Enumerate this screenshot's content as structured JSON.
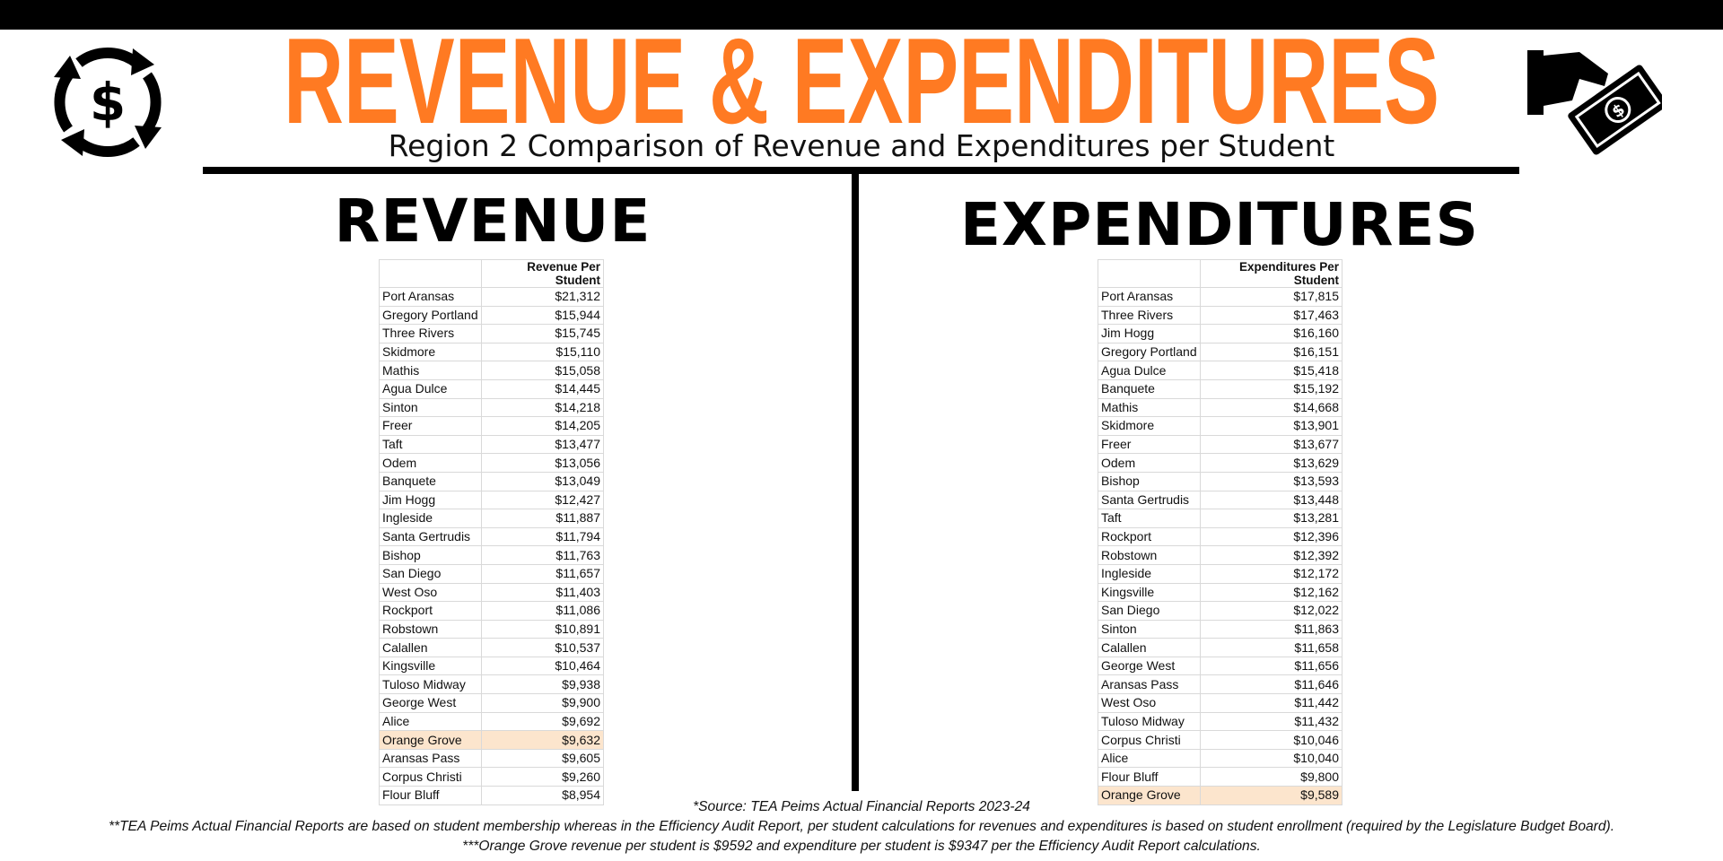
{
  "header": {
    "title": "REVENUE & EXPENDITURES",
    "subtitle": "Region 2 Comparison of Revenue and Expenditures per Student"
  },
  "revenue": {
    "heading": "REVENUE",
    "table": {
      "header": "Revenue Per Student",
      "rows": [
        {
          "name": "Port Aransas",
          "value": "$21,312"
        },
        {
          "name": "Gregory Portland",
          "value": "$15,944"
        },
        {
          "name": "Three Rivers",
          "value": "$15,745"
        },
        {
          "name": "Skidmore",
          "value": "$15,110"
        },
        {
          "name": "Mathis",
          "value": "$15,058"
        },
        {
          "name": "Agua Dulce",
          "value": "$14,445"
        },
        {
          "name": "Sinton",
          "value": "$14,218"
        },
        {
          "name": "Freer",
          "value": "$14,205"
        },
        {
          "name": "Taft",
          "value": "$13,477"
        },
        {
          "name": "Odem",
          "value": "$13,056"
        },
        {
          "name": "Banquete",
          "value": "$13,049"
        },
        {
          "name": "Jim Hogg",
          "value": "$12,427"
        },
        {
          "name": "Ingleside",
          "value": "$11,887"
        },
        {
          "name": "Santa Gertrudis",
          "value": "$11,794"
        },
        {
          "name": "Bishop",
          "value": "$11,763"
        },
        {
          "name": "San Diego",
          "value": "$11,657"
        },
        {
          "name": "West Oso",
          "value": "$11,403"
        },
        {
          "name": "Rockport",
          "value": "$11,086"
        },
        {
          "name": "Robstown",
          "value": "$10,891"
        },
        {
          "name": "Calallen",
          "value": "$10,537"
        },
        {
          "name": "Kingsville",
          "value": "$10,464"
        },
        {
          "name": "Tuloso Midway",
          "value": "$9,938"
        },
        {
          "name": "George West",
          "value": "$9,900"
        },
        {
          "name": "Alice",
          "value": "$9,692"
        },
        {
          "name": "Orange Grove",
          "value": "$9,632",
          "highlight": "#fce5cd"
        },
        {
          "name": "Aransas Pass",
          "value": "$9,605"
        },
        {
          "name": "Corpus Christi",
          "value": "$9,260"
        },
        {
          "name": "Flour Bluff",
          "value": "$8,954"
        }
      ]
    }
  },
  "expenditures": {
    "heading": "EXPENDITURES",
    "table": {
      "header": "Expenditures Per Student",
      "rows": [
        {
          "name": "Port Aransas",
          "value": "$17,815"
        },
        {
          "name": "Three Rivers",
          "value": "$17,463"
        },
        {
          "name": "Jim Hogg",
          "value": "$16,160"
        },
        {
          "name": "Gregory Portland",
          "value": "$16,151"
        },
        {
          "name": "Agua Dulce",
          "value": "$15,418"
        },
        {
          "name": "Banquete",
          "value": "$15,192"
        },
        {
          "name": "Mathis",
          "value": "$14,668"
        },
        {
          "name": "Skidmore",
          "value": "$13,901"
        },
        {
          "name": "Freer",
          "value": "$13,677"
        },
        {
          "name": "Odem",
          "value": "$13,629"
        },
        {
          "name": "Bishop",
          "value": "$13,593"
        },
        {
          "name": "Santa Gertrudis",
          "value": "$13,448"
        },
        {
          "name": "Taft",
          "value": "$13,281"
        },
        {
          "name": "Rockport",
          "value": "$12,396"
        },
        {
          "name": "Robstown",
          "value": "$12,392"
        },
        {
          "name": "Ingleside",
          "value": "$12,172"
        },
        {
          "name": "Kingsville",
          "value": "$12,162"
        },
        {
          "name": "San Diego",
          "value": "$12,022"
        },
        {
          "name": "Sinton",
          "value": "$11,863"
        },
        {
          "name": "Calallen",
          "value": "$11,658"
        },
        {
          "name": "George West",
          "value": "$11,656"
        },
        {
          "name": "Aransas Pass",
          "value": "$11,646"
        },
        {
          "name": "West Oso",
          "value": "$11,442"
        },
        {
          "name": "Tuloso Midway",
          "value": "$11,432"
        },
        {
          "name": "Corpus Christi",
          "value": "$10,046"
        },
        {
          "name": "Alice",
          "value": "$10,040"
        },
        {
          "name": "Flour Bluff",
          "value": "$9,800"
        },
        {
          "name": "Orange Grove",
          "value": "$9,589",
          "highlight": "#fce5cd"
        }
      ]
    }
  },
  "footnotes": [
    "*Source:  TEA Peims Actual Financial Reports 2023-24",
    "**TEA Peims Actual Financial Reports are based on student membership whereas in the Efficiency Audit Report, per student calculations for revenues and expenditures is based on student enrollment (required by the Legislature Budget Board).",
    "***Orange Grove revenue per student is $9592 and expenditure per student is $9347 per the Efficiency Audit Report calculations."
  ]
}
